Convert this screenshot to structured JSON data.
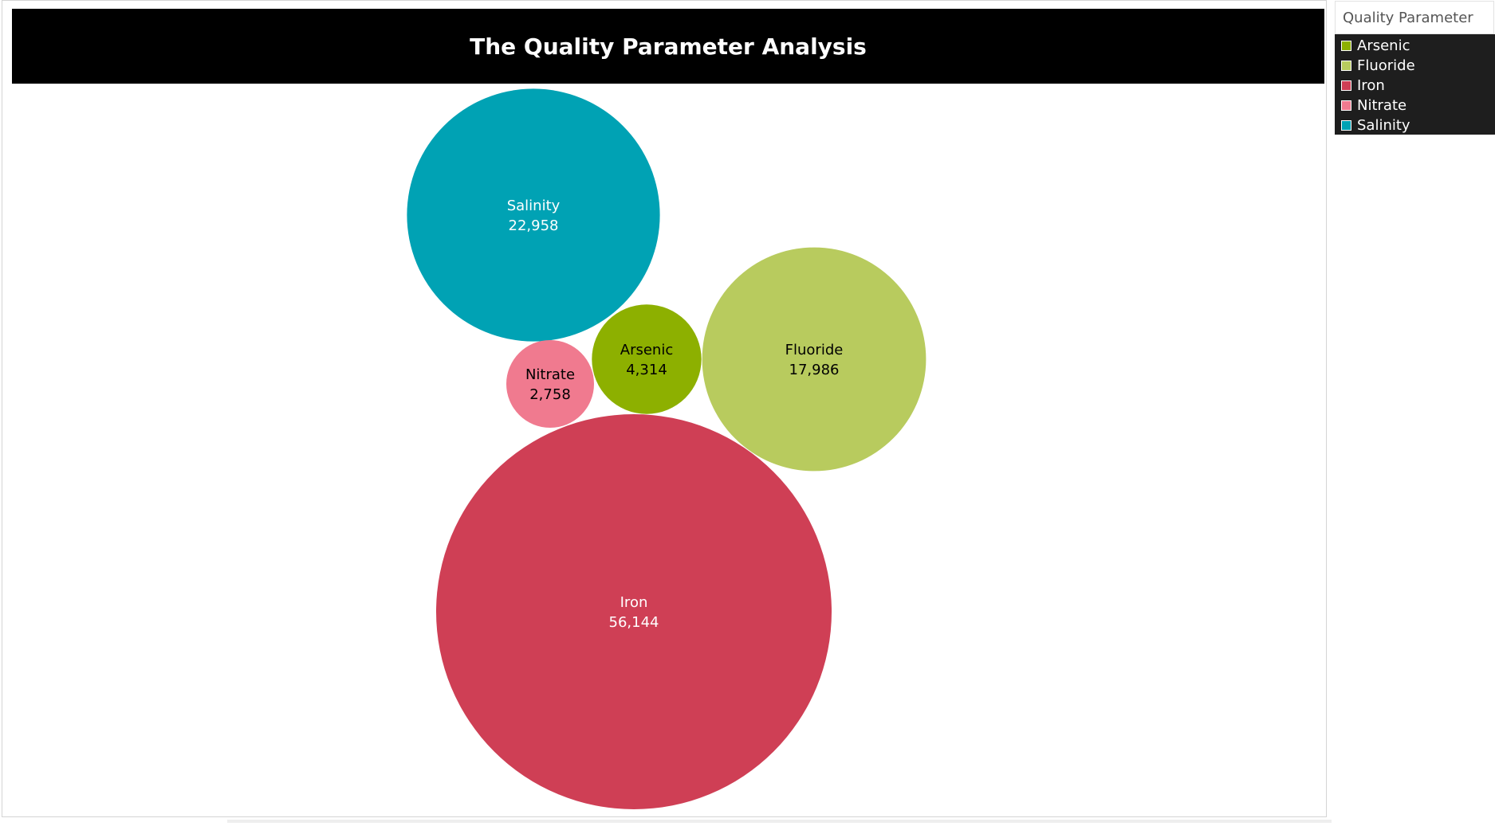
{
  "title": "The Quality Parameter Analysis",
  "legend": {
    "title": "Quality Parameter",
    "items": [
      {
        "label": "Arsenic",
        "color": "#8db000"
      },
      {
        "label": "Fluoride",
        "color": "#b8cb5e"
      },
      {
        "label": "Iron",
        "color": "#cf3f55"
      },
      {
        "label": "Nitrate",
        "color": "#f07a8f"
      },
      {
        "label": "Salinity",
        "color": "#00a2b4"
      }
    ]
  },
  "chart_data": {
    "type": "bubble",
    "title": "The Quality Parameter Analysis",
    "legend_title": "Quality Parameter",
    "legend_position": "right",
    "series": [
      {
        "name": "Salinity",
        "value": 22958,
        "value_label": "22,958",
        "color": "#00a2b4",
        "label_color": "#ffffff"
      },
      {
        "name": "Nitrate",
        "value": 2758,
        "value_label": "2,758",
        "color": "#f07a8f",
        "label_color": "#000000"
      },
      {
        "name": "Arsenic",
        "value": 4314,
        "value_label": "4,314",
        "color": "#8db000",
        "label_color": "#000000"
      },
      {
        "name": "Fluoride",
        "value": 17986,
        "value_label": "17,986",
        "color": "#b8cb5e",
        "label_color": "#000000"
      },
      {
        "name": "Iron",
        "value": 56144,
        "value_label": "56,144",
        "color": "#cf3f55",
        "label_color": "#ffffff"
      }
    ]
  }
}
